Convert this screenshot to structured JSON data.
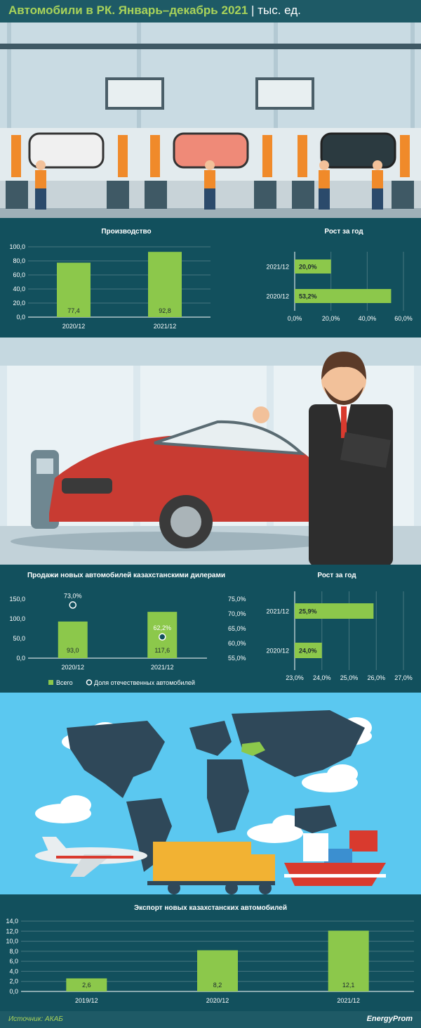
{
  "header": {
    "title": "Автомобили в РК. Январь–декабрь 2021",
    "unit": "| тыс. ед."
  },
  "footer": {
    "source": "Источник: АКАБ",
    "logo": "EnergyProm"
  },
  "colors": {
    "bar": "#8cc84b",
    "bg": "#12505d",
    "header": "#1e5a66",
    "accent": "#a9d35a"
  },
  "chart_data": [
    {
      "id": "production",
      "type": "bar",
      "title": "Производство",
      "categories": [
        "2020/12",
        "2021/12"
      ],
      "values": [
        77.4,
        92.8
      ],
      "value_labels": [
        "77,4",
        "92,8"
      ],
      "ylim": [
        0,
        100
      ],
      "yticks": [
        "0,0",
        "20,0",
        "40,0",
        "60,0",
        "80,0",
        "100,0"
      ]
    },
    {
      "id": "production_growth",
      "type": "bar",
      "orientation": "horizontal",
      "title": "Рост за год",
      "categories": [
        "2021/12",
        "2020/12"
      ],
      "values": [
        20.0,
        53.2
      ],
      "value_labels": [
        "20,0%",
        "53,2%"
      ],
      "xlim": [
        0,
        60
      ],
      "xticks": [
        "0,0%",
        "20,0%",
        "40,0%",
        "60,0%"
      ]
    },
    {
      "id": "sales",
      "type": "bar",
      "title": "Продажи новых автомобилей казахстанскими дилерами",
      "categories": [
        "2020/12",
        "2021/12"
      ],
      "series": [
        {
          "name": "Всего",
          "values": [
            93.0,
            117.6
          ],
          "value_labels": [
            "93,0",
            "117,6"
          ]
        },
        {
          "name": "Доля отечественных автомобилей",
          "type": "scatter",
          "values": [
            73.0,
            62.2
          ],
          "value_labels": [
            "73,0%",
            "62,2%"
          ]
        }
      ],
      "ylim": [
        0,
        150
      ],
      "yticks": [
        "0,0",
        "50,0",
        "100,0",
        "150,0"
      ],
      "y2lim": [
        55,
        75
      ],
      "y2ticks": [
        "55,0%",
        "60,0%",
        "65,0%",
        "70,0%",
        "75,0%"
      ],
      "legend_placement": "bottom-left"
    },
    {
      "id": "sales_growth",
      "type": "bar",
      "orientation": "horizontal",
      "title": "Рост за год",
      "categories": [
        "2021/12",
        "2020/12"
      ],
      "values": [
        25.9,
        24.0
      ],
      "value_labels": [
        "25,9%",
        "24,0%"
      ],
      "xlim": [
        23,
        27
      ],
      "xticks": [
        "23,0%",
        "24,0%",
        "25,0%",
        "26,0%",
        "27,0%"
      ]
    },
    {
      "id": "export",
      "type": "bar",
      "title": "Экспорт новых казахстанских автомобилей",
      "categories": [
        "2019/12",
        "2020/12",
        "2021/12"
      ],
      "values": [
        2.6,
        8.2,
        12.1
      ],
      "value_labels": [
        "2,6",
        "8,2",
        "12,1"
      ],
      "ylim": [
        0,
        14
      ],
      "yticks": [
        "0,0",
        "2,0",
        "4,0",
        "6,0",
        "8,0",
        "10,0",
        "12,0",
        "14,0"
      ]
    }
  ]
}
